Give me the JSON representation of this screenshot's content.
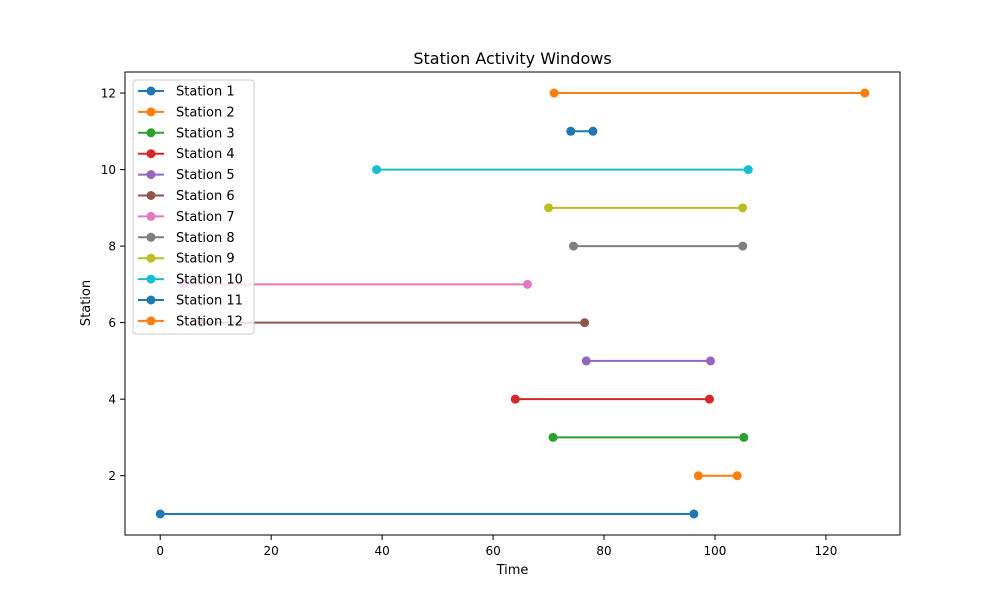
{
  "chart_data": {
    "type": "line",
    "title": "Station Activity Windows",
    "xlabel": "Time",
    "ylabel": "Station",
    "xlim": [
      -6.35,
      133.35
    ],
    "ylim": [
      0.45,
      12.55
    ],
    "xticks": [
      0,
      20,
      40,
      60,
      80,
      100,
      120
    ],
    "yticks": [
      2,
      4,
      6,
      8,
      10,
      12
    ],
    "grid": false,
    "legend_position": "upper left",
    "series": [
      {
        "name": "Station 1",
        "color": "#1f77b4",
        "x": [
          0,
          96.2
        ],
        "y": [
          1,
          1
        ]
      },
      {
        "name": "Station 2",
        "color": "#ff7f0e",
        "x": [
          97,
          104
        ],
        "y": [
          2,
          2
        ]
      },
      {
        "name": "Station 3",
        "color": "#2ca02c",
        "x": [
          70.8,
          105.2
        ],
        "y": [
          3,
          3
        ]
      },
      {
        "name": "Station 4",
        "color": "#d62728",
        "x": [
          64,
          99
        ],
        "y": [
          4,
          4
        ]
      },
      {
        "name": "Station 5",
        "color": "#9467bd",
        "x": [
          76.8,
          99.2
        ],
        "y": [
          5,
          5
        ]
      },
      {
        "name": "Station 6",
        "color": "#8c564b",
        "x": [
          7.5,
          76.5
        ],
        "y": [
          6,
          6
        ]
      },
      {
        "name": "Station 7",
        "color": "#e377c2",
        "x": [
          4.2,
          66.2
        ],
        "y": [
          7,
          7
        ]
      },
      {
        "name": "Station 8",
        "color": "#7f7f7f",
        "x": [
          74.5,
          105
        ],
        "y": [
          8,
          8
        ]
      },
      {
        "name": "Station 9",
        "color": "#bcbd22",
        "x": [
          70,
          105
        ],
        "y": [
          9,
          9
        ]
      },
      {
        "name": "Station 10",
        "color": "#17becf",
        "x": [
          39,
          106
        ],
        "y": [
          10,
          10
        ]
      },
      {
        "name": "Station 11",
        "color": "#1f77b4",
        "x": [
          74,
          78
        ],
        "y": [
          11,
          11
        ]
      },
      {
        "name": "Station 12",
        "color": "#ff7f0e",
        "x": [
          71,
          127
        ],
        "y": [
          12,
          12
        ]
      }
    ]
  }
}
